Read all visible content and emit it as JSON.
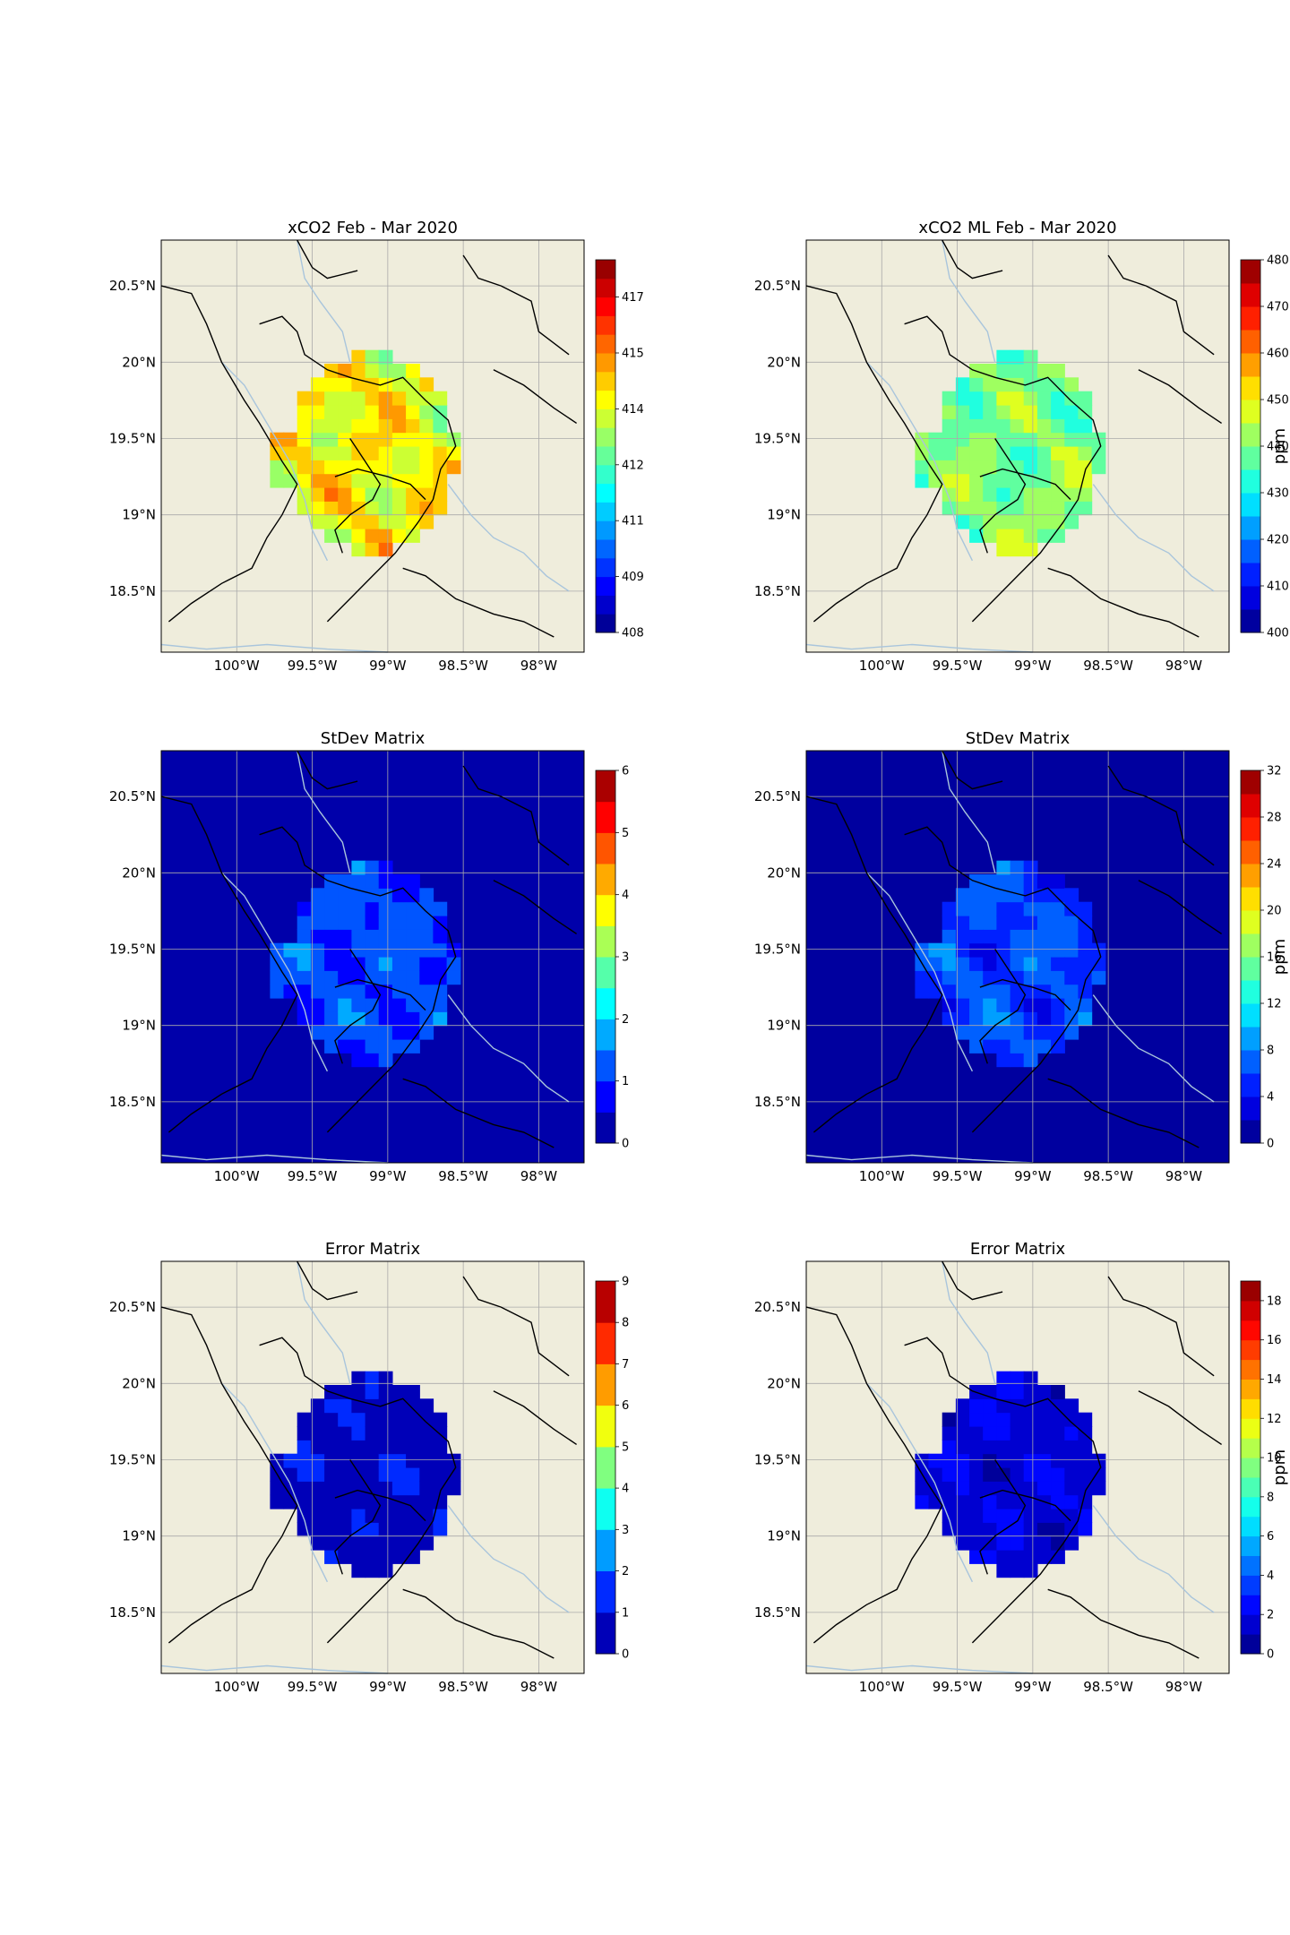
{
  "axes": {
    "lon_ticks": [
      "100°W",
      "99.5°W",
      "99°W",
      "98.5°W",
      "98°W"
    ],
    "lat_ticks": [
      "20.5°N",
      "20°N",
      "19.5°N",
      "19°N",
      "18.5°N"
    ]
  },
  "colors": {
    "land": "#efeddc",
    "water": "#a9c5dc",
    "border": "#000000",
    "grid": "#aaaaaa",
    "colormap": "jet"
  },
  "panels": [
    {
      "id": "xco2",
      "title": "xCO2 Feb - Mar 2020",
      "background": "land",
      "colorbar": {
        "min": 408.0,
        "max": 418.0,
        "levels": 20,
        "tick_labels": [
          "408.0",
          "409.5",
          "411.0",
          "412.5",
          "414.0",
          "415.5",
          "417.0"
        ],
        "tick_values": [
          408.0,
          409.5,
          411.0,
          412.5,
          414.0,
          415.5,
          417.0
        ],
        "unit": ""
      }
    },
    {
      "id": "xco2-ml",
      "title": "xCO2 ML Feb - Mar 2020",
      "background": "land",
      "colorbar": {
        "min": 400,
        "max": 480,
        "levels": 16,
        "tick_labels": [
          "400",
          "410",
          "420",
          "430",
          "440",
          "450",
          "460",
          "470",
          "480"
        ],
        "tick_values": [
          400,
          410,
          420,
          430,
          440,
          450,
          460,
          470,
          480
        ],
        "unit": "ppm"
      }
    },
    {
      "id": "stdev",
      "title": "StDev Matrix",
      "background": "colormap-min",
      "colorbar": {
        "min": 0,
        "max": 6,
        "levels": 12,
        "tick_labels": [
          "0",
          "1",
          "2",
          "3",
          "4",
          "5",
          "6"
        ],
        "tick_values": [
          0,
          1,
          2,
          3,
          4,
          5,
          6
        ],
        "unit": ""
      }
    },
    {
      "id": "stdev-ml",
      "title": "StDev Matrix",
      "background": "colormap-min",
      "colorbar": {
        "min": 0,
        "max": 32,
        "levels": 16,
        "tick_labels": [
          "0",
          "4",
          "8",
          "12",
          "16",
          "20",
          "24",
          "28",
          "32"
        ],
        "tick_values": [
          0,
          4,
          8,
          12,
          16,
          20,
          24,
          28,
          32
        ],
        "unit": "ppm"
      }
    },
    {
      "id": "error",
      "title": "Error Matrix",
      "background": "land",
      "colorbar": {
        "min": 0,
        "max": 9,
        "levels": 9,
        "tick_labels": [
          "0",
          "1",
          "2",
          "3",
          "4",
          "5",
          "6",
          "7",
          "8",
          "9"
        ],
        "tick_values": [
          0,
          1,
          2,
          3,
          4,
          5,
          6,
          7,
          8,
          9
        ],
        "unit": ""
      }
    },
    {
      "id": "error-ml",
      "title": "Error Matrix",
      "background": "land",
      "colorbar": {
        "min": 0,
        "max": 19,
        "levels": 19,
        "tick_labels": [
          "0",
          "2",
          "4",
          "6",
          "8",
          "10",
          "12",
          "14",
          "16",
          "18"
        ],
        "tick_values": [
          0,
          2,
          4,
          6,
          8,
          10,
          12,
          14,
          16,
          18
        ],
        "unit": "ppm"
      }
    }
  ]
}
